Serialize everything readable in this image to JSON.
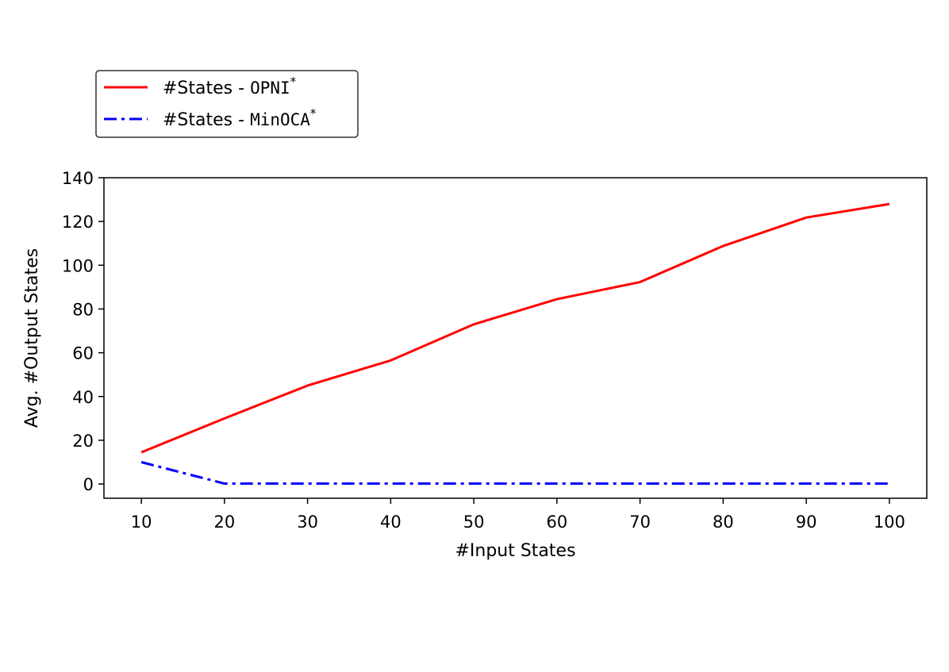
{
  "chart_data": {
    "type": "line",
    "xlabel": "#Input States",
    "ylabel": "Avg. #Output States",
    "x": [
      10,
      20,
      30,
      40,
      50,
      60,
      70,
      80,
      90,
      100
    ],
    "xlim": [
      5.5,
      104.5
    ],
    "ylim": [
      -6.5,
      140
    ],
    "xticks": [
      10,
      20,
      30,
      40,
      50,
      60,
      70,
      80,
      90,
      100
    ],
    "yticks": [
      0,
      20,
      40,
      60,
      80,
      100,
      120,
      140
    ],
    "grid": false,
    "legend_position": "top-left, outside above plot",
    "series": [
      {
        "name_prefix": "#States - ",
        "name_code": "OPNI",
        "name_sup": "*",
        "color": "#ff0000",
        "style": "solid",
        "values": [
          14.5,
          30,
          45,
          56.5,
          73,
          84.5,
          92.3,
          108.8,
          121.8,
          128
        ]
      },
      {
        "name_prefix": "#States - ",
        "name_code": "MinOCA",
        "name_sup": "*",
        "color": "#0000ff",
        "style": "dashdot",
        "values": [
          10,
          0.2,
          0.2,
          0.2,
          0.2,
          0.2,
          0.2,
          0.2,
          0.2,
          0.2
        ]
      }
    ]
  }
}
